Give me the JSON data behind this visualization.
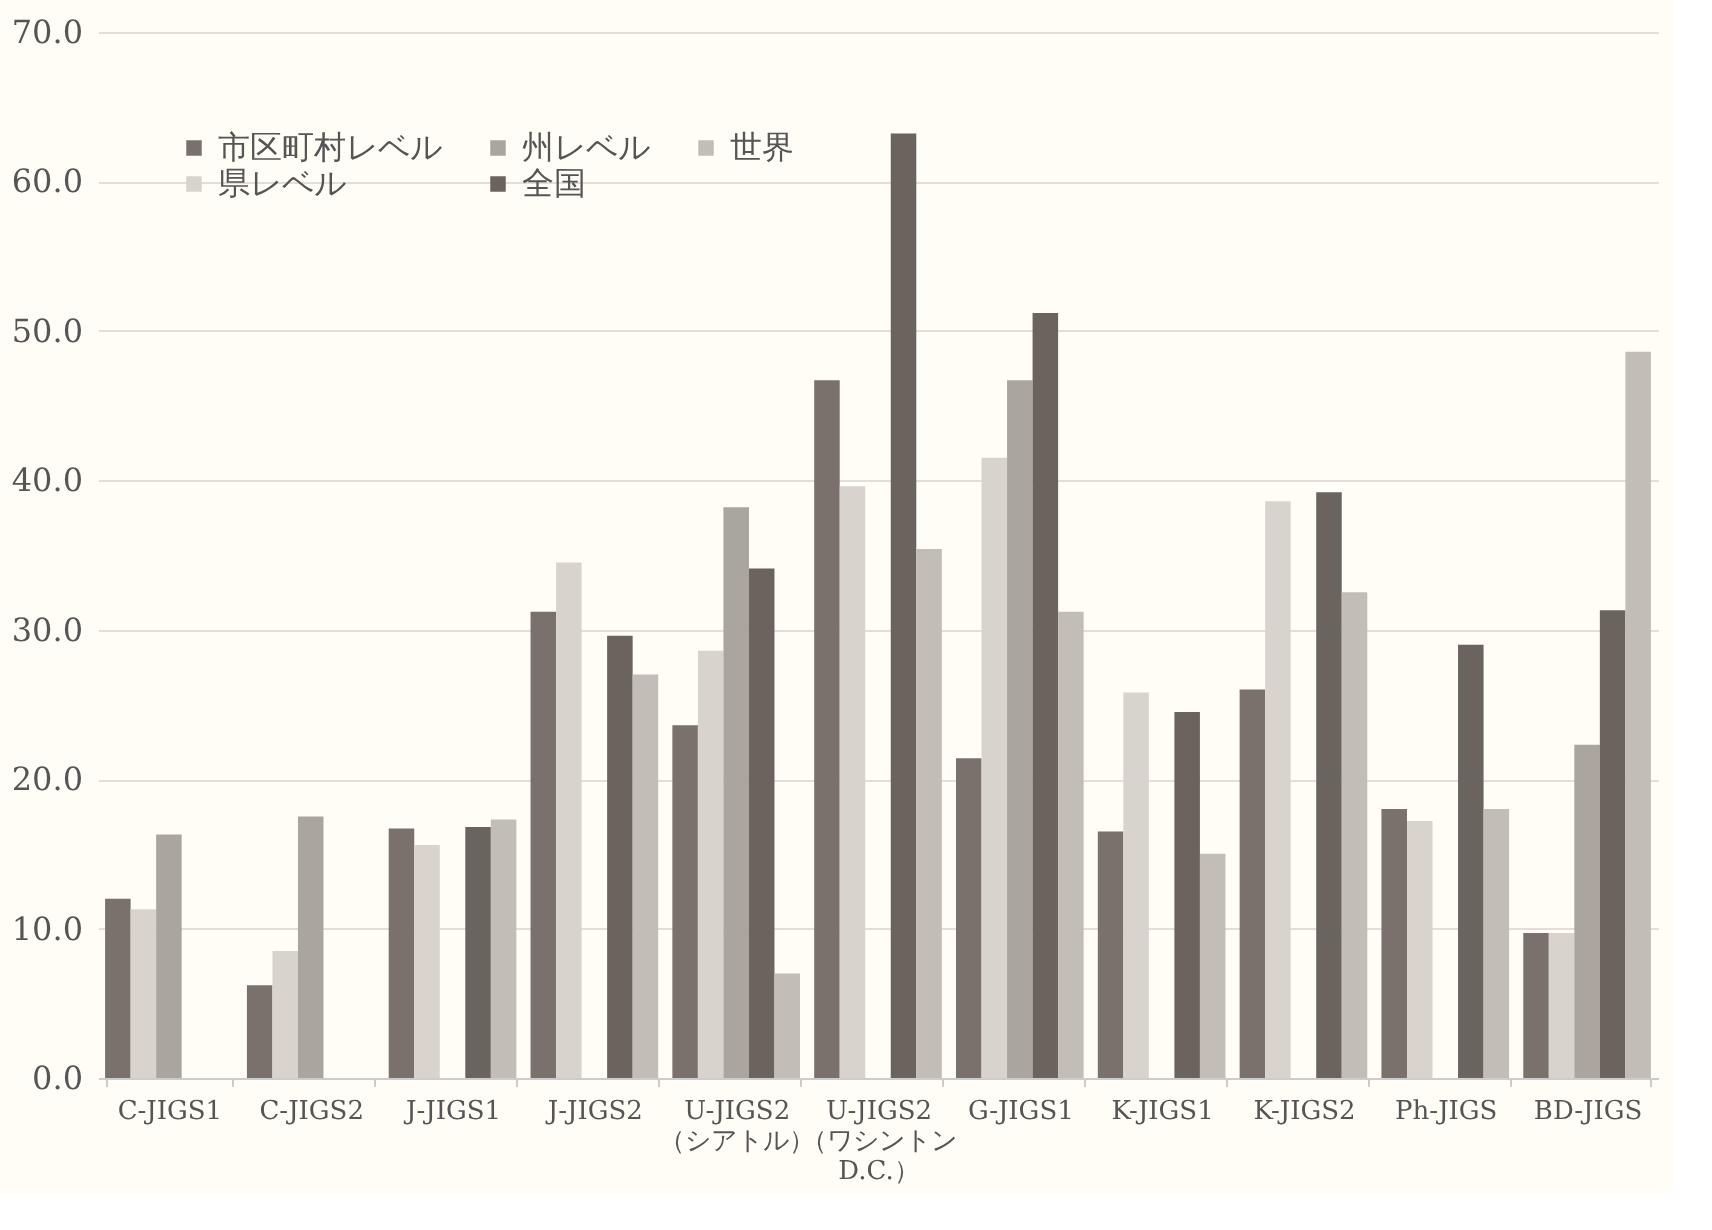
{
  "chart_data": {
    "type": "bar",
    "categories": [
      "C-JIGS1",
      "C-JIGS2",
      "J-JIGS1",
      "J-JIGS2",
      "U-JIGS2\n（シアトル）",
      "U-JIGS2\n（ワシントン\nD.C.）",
      "G-JIGS1",
      "K-JIGS1",
      "K-JIGS2",
      "Ph-JIGS",
      "BD-JIGS"
    ],
    "series": [
      {
        "name": "市区町村レベル",
        "color": "#7a716b",
        "values": [
          12.0,
          6.2,
          16.7,
          31.2,
          23.6,
          46.7,
          21.4,
          16.5,
          26.0,
          18.0,
          9.7
        ]
      },
      {
        "name": "県レベル",
        "color": "#d8d4cd",
        "values": [
          11.3,
          8.5,
          15.6,
          34.5,
          28.6,
          39.6,
          41.5,
          25.8,
          38.6,
          17.2,
          9.7
        ]
      },
      {
        "name": "州レベル",
        "color": "#aaa59e",
        "values": [
          16.3,
          17.5,
          null,
          null,
          38.2,
          null,
          46.7,
          null,
          null,
          null,
          22.3
        ]
      },
      {
        "name": "全国",
        "color": "#6b635d",
        "values": [
          null,
          null,
          16.8,
          29.6,
          34.1,
          63.2,
          51.2,
          24.5,
          39.2,
          29.0,
          31.3
        ]
      },
      {
        "name": "世界",
        "color": "#c2bdb6",
        "values": [
          null,
          null,
          17.3,
          27.0,
          7.0,
          35.4,
          31.2,
          15.0,
          32.5,
          18.0,
          48.6
        ]
      }
    ],
    "ylim": [
      0,
      70
    ],
    "yticks": [
      {
        "value": 0,
        "label": "0.0"
      },
      {
        "value": 10,
        "label": "10.0"
      },
      {
        "value": 20,
        "label": "20.0"
      },
      {
        "value": 30,
        "label": "30.0"
      },
      {
        "value": 40,
        "label": "40.0"
      },
      {
        "value": 50,
        "label": "50.0"
      },
      {
        "value": 60,
        "label": "60.0"
      },
      {
        "value": 70,
        "label": "70.0"
      }
    ],
    "grid": "y",
    "legend": "top left"
  }
}
